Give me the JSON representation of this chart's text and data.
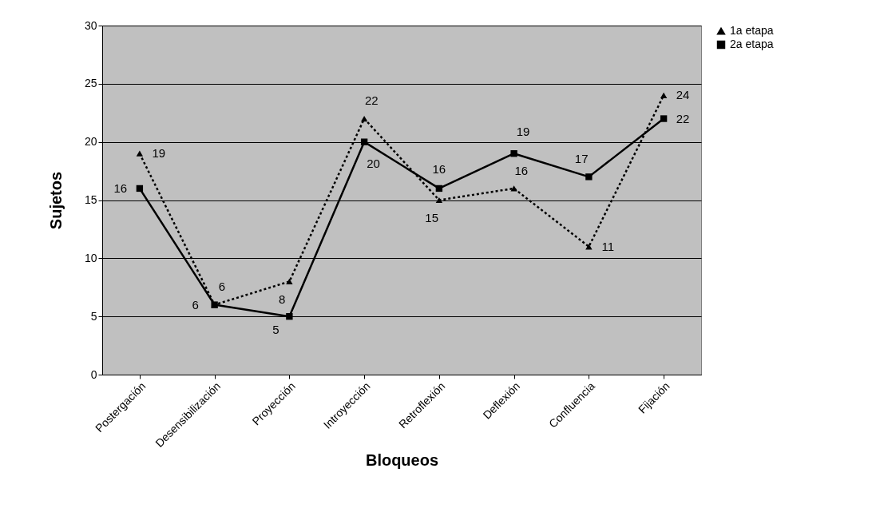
{
  "chart_data": {
    "type": "line",
    "xlabel": "Bloqueos",
    "ylabel": "Sujetos",
    "categories": [
      "Postergación",
      "Desensibilización",
      "Proyección",
      "Introyección",
      "Retroflexión",
      "Deflexión",
      "Confluencia",
      "Fijación"
    ],
    "series": [
      {
        "name": "1a etapa",
        "color": "#000000",
        "marker": "triangle",
        "line_style": "dotted",
        "values": [
          19,
          6,
          8,
          22,
          15,
          16,
          11,
          24
        ]
      },
      {
        "name": "2a etapa",
        "color": "#000000",
        "marker": "square",
        "line_style": "solid",
        "values": [
          16,
          6,
          5,
          20,
          16,
          19,
          17,
          22
        ]
      }
    ],
    "ylim": [
      0,
      30
    ],
    "yticks": [
      0,
      5,
      10,
      15,
      20,
      25,
      30
    ],
    "grid": "y",
    "legend": "right",
    "data_labels": true
  }
}
